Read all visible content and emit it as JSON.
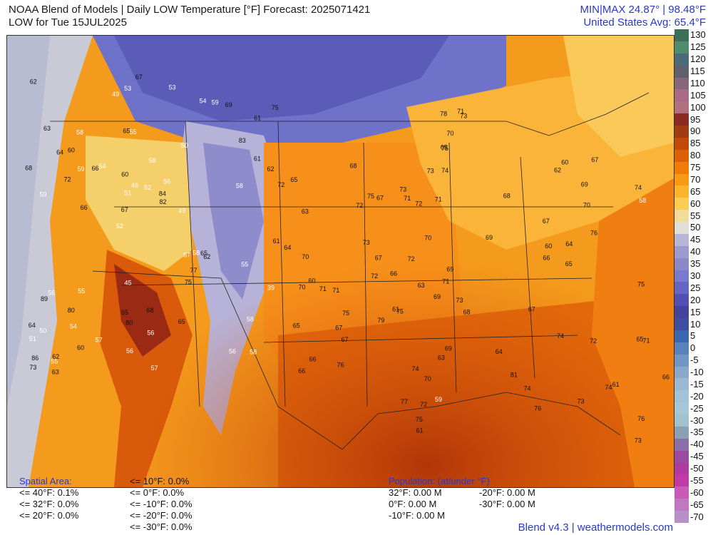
{
  "header": {
    "title_line1": "NOAA Blend of Models | Daily LOW Temperature [°F] Forecast: 2025071421",
    "title_line2": "LOW for Tue 15JUL2025",
    "minmax": "MIN|MAX 24.87°  |  98.48°F",
    "us_avg": "United States Avg: 65.4°F"
  },
  "scale": {
    "labels": [
      "130",
      "125",
      "120",
      "115",
      "110",
      "105",
      "100",
      "95",
      "90",
      "85",
      "80",
      "75",
      "70",
      "65",
      "60",
      "55",
      "50",
      "45",
      "40",
      "35",
      "30",
      "25",
      "20",
      "15",
      "10",
      "5",
      "0",
      "-5",
      "-10",
      "-15",
      "-20",
      "-25",
      "-30",
      "-35",
      "-40",
      "-45",
      "-50",
      "-55",
      "-60",
      "-65",
      "-70"
    ],
    "colors": [
      "#3d6e5a",
      "#4f8c6e",
      "#4c6a78",
      "#61606e",
      "#86677a",
      "#a86a84",
      "#b07080",
      "#8a2a22",
      "#a23a12",
      "#c14a0a",
      "#dd5f06",
      "#ef7c06",
      "#f89a14",
      "#fbb52c",
      "#fbcd55",
      "#f2dc9a",
      "#e0e0d8",
      "#b8b6d6",
      "#9d9ad0",
      "#8a88c6",
      "#787ad0",
      "#6466c6",
      "#5250b4",
      "#44429c",
      "#3f4ea0",
      "#3b66b0",
      "#5882bc",
      "#6f96c4",
      "#8aa8cc",
      "#9ab8d2",
      "#a0c4d6",
      "#a4c8d6",
      "#a0c2cc",
      "#8aa0b4",
      "#8a70a8",
      "#9a4aa0",
      "#b03aa0",
      "#c23aa8",
      "#c85ab8",
      "#c078c0",
      "#b890c8"
    ]
  },
  "stats_left": {
    "title": "Spatial Area:",
    "items": [
      "<= 40°F: 0.1%",
      "<= 32°F: 0.0%",
      "<= 20°F: 0.0%"
    ]
  },
  "stats_mid": {
    "items": [
      "<= 10°F: 0.0%",
      "<= 0°F: 0.0%",
      "<= -10°F: 0.0%",
      "<= -20°F: 0.0%",
      "<= -30°F: 0.0%"
    ]
  },
  "stats_pop": {
    "title": "Population: (at/under °F)",
    "col1": [
      "32°F: 0.00 M",
      "0°F: 0.00 M",
      "-10°F: 0.00 M"
    ],
    "col2": [
      "-20°F: 0.00 M",
      "-30°F: 0.00 M"
    ]
  },
  "footer": "Blend v4.3 | weathermodels.com",
  "map_labels": {
    "west": [
      "58",
      "59",
      "61",
      "52",
      "50",
      "62",
      "65",
      "58",
      "56",
      "54",
      "51",
      "54",
      "55",
      "56",
      "62",
      "63",
      "53",
      "72",
      "57",
      "61",
      "67",
      "65",
      "51",
      "58",
      "54",
      "55",
      "56",
      "58",
      "65",
      "57",
      "66",
      "72",
      "75",
      "60",
      "62",
      "84",
      "86",
      "80",
      "82",
      "89",
      "83",
      "75",
      "77",
      "65",
      "80",
      "63",
      "73",
      "68",
      "69",
      "67",
      "66",
      "68",
      "60",
      "59",
      "55",
      "53",
      "49",
      "46",
      "39",
      "45",
      "57",
      "58",
      "59",
      "64",
      "62",
      "64",
      "61",
      "60",
      "56",
      "52",
      "50",
      "49",
      "55",
      "56",
      "58"
    ],
    "central": [
      "59",
      "60",
      "61",
      "65",
      "69",
      "63",
      "66",
      "71",
      "72",
      "75",
      "71",
      "70",
      "67",
      "68",
      "66",
      "65",
      "63",
      "67",
      "64",
      "66",
      "65",
      "67",
      "70",
      "68",
      "69",
      "70",
      "71",
      "72",
      "73",
      "74",
      "75",
      "70",
      "67",
      "73",
      "72",
      "69",
      "71",
      "74",
      "73",
      "77",
      "75",
      "79",
      "76"
    ],
    "east": [
      "63",
      "64",
      "65",
      "66",
      "60",
      "61",
      "67",
      "70",
      "71",
      "72",
      "73",
      "74",
      "75",
      "76",
      "78",
      "81",
      "73",
      "74",
      "76",
      "72",
      "73",
      "67",
      "69",
      "68",
      "71",
      "72",
      "74",
      "73",
      "75",
      "76",
      "74",
      "75",
      "60",
      "58",
      "61",
      "62",
      "64",
      "67",
      "70",
      "71",
      "69",
      "65",
      "66"
    ]
  }
}
